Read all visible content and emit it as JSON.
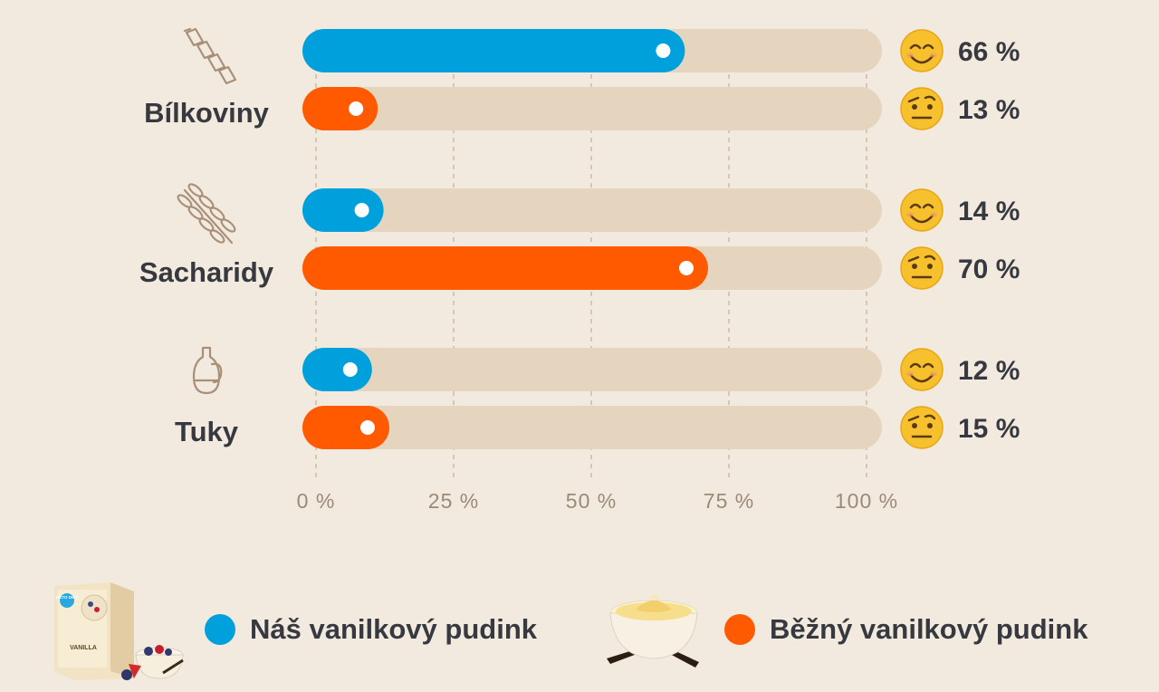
{
  "chart_data": {
    "type": "bar",
    "orientation": "horizontal",
    "categories": [
      "Bílkoviny",
      "Sacharidy",
      "Tuky"
    ],
    "category_icons": [
      "pasta-icon",
      "wheat-icon",
      "oil-bottle-icon"
    ],
    "series": [
      {
        "name": "Náš vanilkový pudink",
        "color": "#00a0dc",
        "emoji": "smiling-face",
        "values": [
          66,
          14,
          12
        ]
      },
      {
        "name": "Běžný vanilkový pudink",
        "color": "#ff5a00",
        "emoji": "raised-eyebrow-face",
        "values": [
          13,
          70,
          15
        ]
      }
    ],
    "value_labels": [
      [
        "66 %",
        "14 %",
        "12 %"
      ],
      [
        "13 %",
        "70 %",
        "15 %"
      ]
    ],
    "xlim": [
      0,
      100
    ],
    "xticks": [
      0,
      25,
      50,
      75,
      100
    ],
    "xtick_labels": [
      "0 %",
      "25 %",
      "50 %",
      "75 %",
      "100 %"
    ],
    "grid": "vertical-dashed",
    "track_color": "#e6d5be",
    "background": "#f3eadf",
    "legend_position": "bottom"
  },
  "legend": {
    "ours": {
      "label": "Náš vanilkový pudink",
      "color": "#00a0dc",
      "image": "product-box-vanilla"
    },
    "regular": {
      "label": "Běžný vanilkový pudink",
      "color": "#ff5a00",
      "image": "pudding-bowl"
    }
  },
  "product_box": {
    "brand": "KETO DIET",
    "flavor": "VANILLA"
  }
}
